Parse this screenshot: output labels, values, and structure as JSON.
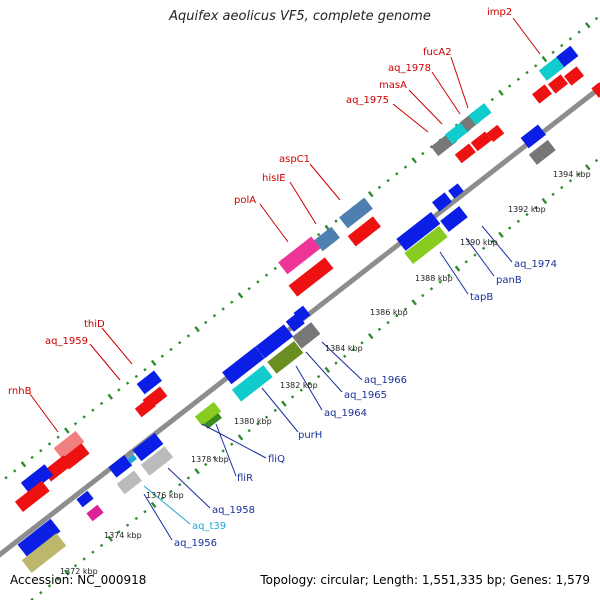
{
  "title": "Aquifex aeolicus VF5, complete genome",
  "accession": "Accession: NC_000918",
  "summary": "Topology: circular; Length: 1,551,335 bp; Genes: 1,579",
  "colors": {
    "backbone": "#888888",
    "tick_dot": "#2e8b2e",
    "red_gene": "#ee1111",
    "blue_gene": "#0a1ee6",
    "cyan_gene": "#11cccc",
    "pink_gene": "#ee3399",
    "steel_gene": "#4f7fb0",
    "gray_gene": "#777777",
    "lightgray_gene": "#bbbbbb",
    "lime_gene": "#88cc22",
    "olive_gene": "#6b8e23",
    "khaki_gene": "#bdb76b",
    "salmon_gene": "#f08080",
    "magenta_gene": "#dd2299",
    "label_red": "#cc0000",
    "label_blue": "#1a2e9c",
    "label_cyan": "#22a6d8"
  },
  "kbp_labels": [
    "1394 kbp",
    "1392 kbp",
    "1390 kbp",
    "1388 kbp",
    "1386 kbp",
    "1384 kbp",
    "1382 kbp",
    "1380 kbp",
    "1378 kbp",
    "1376 kbp",
    "1374 kbp",
    "1372 kbp"
  ],
  "genes_upper": [
    "imp2",
    "fucA2",
    "aq_1978",
    "masA",
    "aq_1975",
    "aspC1",
    "hisIE",
    "polA",
    "thiD",
    "aq_1959",
    "rnhB"
  ],
  "genes_lower": [
    "aq_1974",
    "panB",
    "tapB",
    "aq_1966",
    "aq_1965",
    "aq_1964",
    "purH",
    "fliQ",
    "fliR",
    "aq_1958",
    "aq_t39",
    "aq_1956"
  ]
}
